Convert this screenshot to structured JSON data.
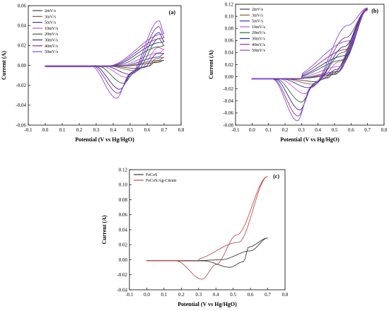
{
  "chart_data": [
    {
      "type": "line",
      "panel_label": "(a)",
      "xlabel": "Potential (V vs Hg/HgO)",
      "ylabel": "Current (A)",
      "xlim": [
        -0.1,
        0.8
      ],
      "ylim": [
        -0.06,
        0.06
      ],
      "x_ticks": [
        "-0.1",
        "0.0",
        "0.1",
        "0.2",
        "0.3",
        "0.4",
        "0.5",
        "0.6",
        "0.7",
        "0.8"
      ],
      "y_ticks": [
        "-0.06",
        "-0.04",
        "-0.02",
        "0.00",
        "0.02",
        "0.04",
        "0.06"
      ],
      "legend_position": "top-left",
      "cv": {
        "x0": 0.0,
        "xmax": 0.7,
        "baseline": -0.0015,
        "back_end": -0.0005
      },
      "series": [
        {
          "name": "2mV/s",
          "color": "#404040",
          "peak_ox": [
            0.66,
            0.004
          ],
          "peak_red": [
            0.53,
            -0.003
          ],
          "end": 0.005
        },
        {
          "name": "3mV/s",
          "color": "#8a5a2b",
          "peak_ox": [
            0.665,
            0.007
          ],
          "peak_red": [
            0.52,
            -0.005
          ],
          "end": 0.008
        },
        {
          "name": "5mV/s",
          "color": "#3b2fc9",
          "peak_ox": [
            0.67,
            0.012
          ],
          "peak_red": [
            0.5,
            -0.009
          ],
          "end": 0.012
        },
        {
          "name": "10mV/s",
          "color": "#d14fd1",
          "peak_ox": [
            0.675,
            0.018
          ],
          "peak_red": [
            0.48,
            -0.012
          ],
          "end": 0.016
        },
        {
          "name": "20mV/s",
          "color": "#2d6a2d",
          "peak_ox": [
            0.68,
            0.027
          ],
          "peak_red": [
            0.46,
            -0.018
          ],
          "end": 0.02
        },
        {
          "name": "30mV/s",
          "color": "#2a2aa8",
          "peak_ox": [
            0.685,
            0.033
          ],
          "peak_red": [
            0.44,
            -0.024
          ],
          "end": 0.024
        },
        {
          "name": "40mV/s",
          "color": "#8e2f8e",
          "peak_ox": [
            0.69,
            0.039
          ],
          "peak_red": [
            0.43,
            -0.028
          ],
          "end": 0.028
        },
        {
          "name": "50mV/s",
          "color": "#8a48e0",
          "peak_ox": [
            0.695,
            0.045
          ],
          "peak_red": [
            0.42,
            -0.033
          ],
          "end": 0.032
        }
      ]
    },
    {
      "type": "line",
      "panel_label": "(b)",
      "xlabel": "Potential (V vs Hg/HgO)",
      "ylabel": "Current (A)",
      "xlim": [
        -0.1,
        0.8
      ],
      "ylim": [
        -0.08,
        0.12
      ],
      "x_ticks": [
        "-0.1",
        "0.0",
        "0.1",
        "0.2",
        "0.3",
        "0.4",
        "0.5",
        "0.6",
        "0.7",
        "0.8"
      ],
      "y_ticks": [
        "-0.08",
        "-0.06",
        "-0.04",
        "-0.02",
        "0.00",
        "0.02",
        "0.04",
        "0.06",
        "0.08",
        "0.10",
        "0.12"
      ],
      "legend_position": "top-left",
      "cv": {
        "x0": 0.0,
        "xmax": 0.7,
        "baseline": -0.003,
        "back_end": -0.004
      },
      "series": [
        {
          "name": "2mV/s",
          "color": "#404040",
          "peak_ox": [
            0.5,
            0.005
          ],
          "peak_red": [
            0.38,
            -0.008
          ],
          "end": 0.11
        },
        {
          "name": "3mV/s",
          "color": "#8a5a2b",
          "peak_ox": [
            0.51,
            0.008
          ],
          "peak_red": [
            0.36,
            -0.012
          ],
          "end": 0.11
        },
        {
          "name": "5mV/s",
          "color": "#3b2fc9",
          "peak_ox": [
            0.52,
            0.012
          ],
          "peak_red": [
            0.34,
            -0.018
          ],
          "end": 0.111
        },
        {
          "name": "10mV/s",
          "color": "#d14fd1",
          "peak_ox": [
            0.54,
            0.025
          ],
          "peak_red": [
            0.32,
            -0.028
          ],
          "end": 0.111
        },
        {
          "name": "20mV/s",
          "color": "#2d6a2d",
          "peak_ox": [
            0.56,
            0.04
          ],
          "peak_red": [
            0.3,
            -0.042
          ],
          "end": 0.112
        },
        {
          "name": "30mV/s",
          "color": "#2a2aa8",
          "peak_ox": [
            0.57,
            0.05
          ],
          "peak_red": [
            0.29,
            -0.055
          ],
          "end": 0.112
        },
        {
          "name": "40mV/s",
          "color": "#8e2f8e",
          "peak_ox": [
            0.58,
            0.065
          ],
          "peak_red": [
            0.28,
            -0.065
          ],
          "end": 0.113
        },
        {
          "name": "50mV/s",
          "color": "#8a48e0",
          "peak_ox": [
            0.59,
            0.085
          ],
          "peak_red": [
            0.275,
            -0.073
          ],
          "end": 0.114
        }
      ]
    },
    {
      "type": "line",
      "panel_label": "(c)",
      "xlabel": "Potential (V vs Hg/HgO)",
      "ylabel": "Current (A)",
      "xlim": [
        -0.1,
        0.8
      ],
      "ylim": [
        -0.04,
        0.12
      ],
      "x_ticks": [
        "-0.1",
        "0.0",
        "0.1",
        "0.2",
        "0.3",
        "0.4",
        "0.5",
        "0.6",
        "0.7",
        "0.8"
      ],
      "y_ticks": [
        "-0.04",
        "-0.02",
        "0.00",
        "0.02",
        "0.04",
        "0.06",
        "0.08",
        "0.10",
        "0.12"
      ],
      "legend_position": "top-left",
      "cv": {
        "x0": 0.0,
        "xmax": 0.7,
        "baseline": -0.001,
        "back_end": -0.0015
      },
      "series": [
        {
          "name": "FeCoS",
          "color": "#3a3a3a",
          "peak_ox": [
            0.6,
            0.017
          ],
          "peak_red": [
            0.48,
            -0.01
          ],
          "end": 0.029
        },
        {
          "name": "FeCoS/Ag-Citrate",
          "color": "#c0504d",
          "peak_ox": [
            0.53,
            0.033
          ],
          "peak_red": [
            0.32,
            -0.026
          ],
          "end": 0.111
        }
      ]
    }
  ]
}
